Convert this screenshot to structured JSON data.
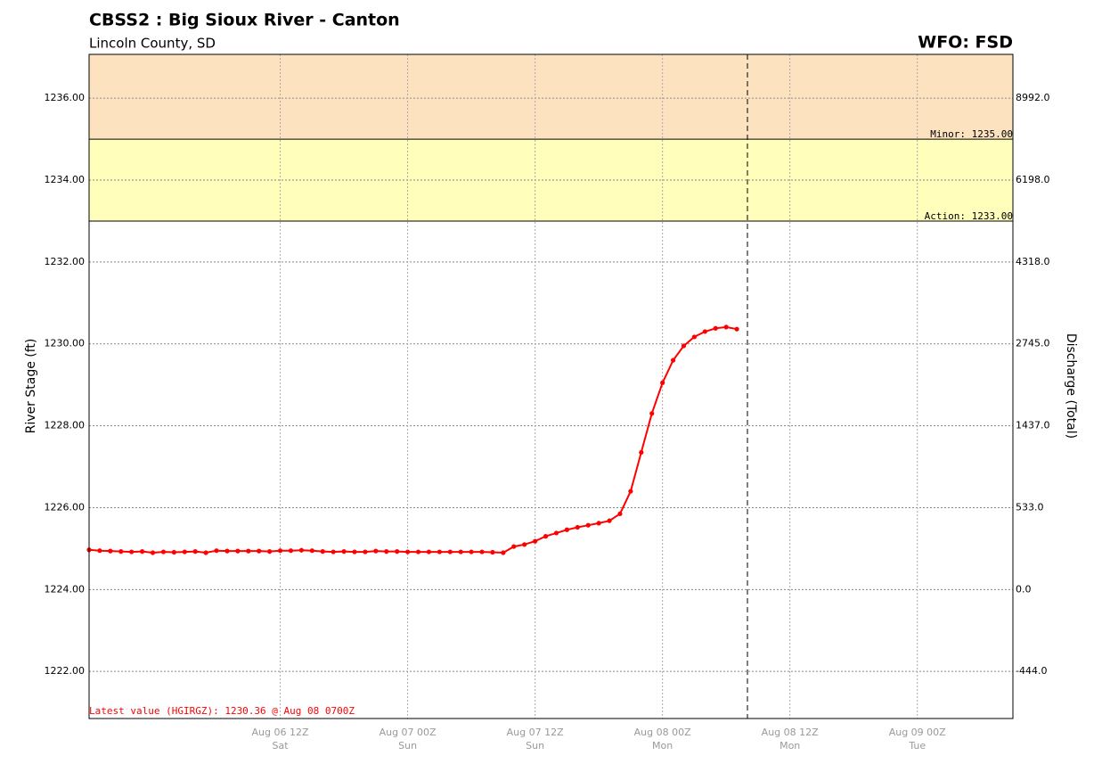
{
  "chart_data": {
    "type": "line",
    "title": "CBSS2 : Big Sioux River - Canton",
    "subtitle": "Lincoln County, SD",
    "office": "WFO: FSD",
    "ylabel": "River Stage (ft)",
    "y2label": "Discharge (Total)",
    "annotation": "Latest value (HGIRGZ): 1230.36 @ Aug 08 0700Z",
    "color": "#ff0000",
    "grid": true,
    "xlim": [
      "Aug 05 18Z",
      "Aug 09 09Z"
    ],
    "xticks": [
      "Aug 06 12Z",
      "Aug 07 00Z",
      "Aug 07 12Z",
      "Aug 08 00Z",
      "Aug 08 12Z",
      "Aug 09 00Z"
    ],
    "xtick_days": [
      "Sat",
      "Sun",
      "Sun",
      "Mon",
      "Mon",
      "Tue"
    ],
    "now": "Aug 08 08Z",
    "ylim": [
      1220.85,
      1237.07
    ],
    "yticks": [
      {
        "value": 1222,
        "label": "1222.00"
      },
      {
        "value": 1224,
        "label": "1224.00"
      },
      {
        "value": 1226,
        "label": "1226.00"
      },
      {
        "value": 1228,
        "label": "1228.00"
      },
      {
        "value": 1230,
        "label": "1230.00"
      },
      {
        "value": 1232,
        "label": "1232.00"
      },
      {
        "value": 1234,
        "label": "1234.00"
      },
      {
        "value": 1236,
        "label": "1236.00"
      }
    ],
    "y2ticks": [
      {
        "value": -444,
        "label": "-444.0"
      },
      {
        "value": 0,
        "label": "0.0"
      },
      {
        "value": 533,
        "label": "533.0"
      },
      {
        "value": 1437,
        "label": "1437.0"
      },
      {
        "value": 2745,
        "label": "2745.0"
      },
      {
        "value": 4318,
        "label": "4318.0"
      },
      {
        "value": 6198,
        "label": "6198.0"
      },
      {
        "value": 8992,
        "label": "8992.0"
      }
    ],
    "flood_levels": [
      {
        "label": "Minor: 1235.00",
        "value": 1235,
        "color": "#fde2c0"
      },
      {
        "label": "Action: 1233.00",
        "value": 1233,
        "color": "#ffffbb"
      }
    ],
    "x": [
      "Aug 05 18Z",
      "Aug 05 19Z",
      "Aug 05 20Z",
      "Aug 05 21Z",
      "Aug 05 22Z",
      "Aug 05 23Z",
      "Aug 06 00Z",
      "Aug 06 01Z",
      "Aug 06 02Z",
      "Aug 06 03Z",
      "Aug 06 04Z",
      "Aug 06 05Z",
      "Aug 06 06Z",
      "Aug 06 07Z",
      "Aug 06 08Z",
      "Aug 06 09Z",
      "Aug 06 10Z",
      "Aug 06 11Z",
      "Aug 06 12Z",
      "Aug 06 13Z",
      "Aug 06 14Z",
      "Aug 06 15Z",
      "Aug 06 16Z",
      "Aug 06 17Z",
      "Aug 06 18Z",
      "Aug 06 19Z",
      "Aug 06 20Z",
      "Aug 06 21Z",
      "Aug 06 22Z",
      "Aug 06 23Z",
      "Aug 07 00Z",
      "Aug 07 01Z",
      "Aug 07 02Z",
      "Aug 07 03Z",
      "Aug 07 04Z",
      "Aug 07 05Z",
      "Aug 07 06Z",
      "Aug 07 07Z",
      "Aug 07 08Z",
      "Aug 07 09Z",
      "Aug 07 10Z",
      "Aug 07 11Z",
      "Aug 07 12Z",
      "Aug 07 13Z",
      "Aug 07 14Z",
      "Aug 07 15Z",
      "Aug 07 16Z",
      "Aug 07 17Z",
      "Aug 07 18Z",
      "Aug 07 19Z",
      "Aug 07 20Z",
      "Aug 07 21Z",
      "Aug 07 22Z",
      "Aug 07 23Z",
      "Aug 08 00Z",
      "Aug 08 01Z",
      "Aug 08 02Z",
      "Aug 08 03Z",
      "Aug 08 04Z",
      "Aug 08 05Z",
      "Aug 08 06Z",
      "Aug 08 07Z"
    ],
    "values": [
      1224.97,
      1224.95,
      1224.94,
      1224.93,
      1224.92,
      1224.93,
      1224.9,
      1224.92,
      1224.91,
      1224.92,
      1224.93,
      1224.9,
      1224.95,
      1224.94,
      1224.94,
      1224.94,
      1224.94,
      1224.93,
      1224.95,
      1224.95,
      1224.96,
      1224.95,
      1224.93,
      1224.92,
      1224.93,
      1224.92,
      1224.92,
      1224.94,
      1224.93,
      1224.93,
      1224.92,
      1224.92,
      1224.92,
      1224.92,
      1224.92,
      1224.92,
      1224.92,
      1224.92,
      1224.91,
      1224.9,
      1225.05,
      1225.1,
      1225.18,
      1225.3,
      1225.38,
      1225.46,
      1225.52,
      1225.57,
      1225.62,
      1225.68,
      1225.85,
      1226.4,
      1227.35,
      1228.3,
      1229.05,
      1229.6,
      1229.95,
      1230.17,
      1230.3,
      1230.38,
      1230.41,
      1230.36
    ]
  }
}
